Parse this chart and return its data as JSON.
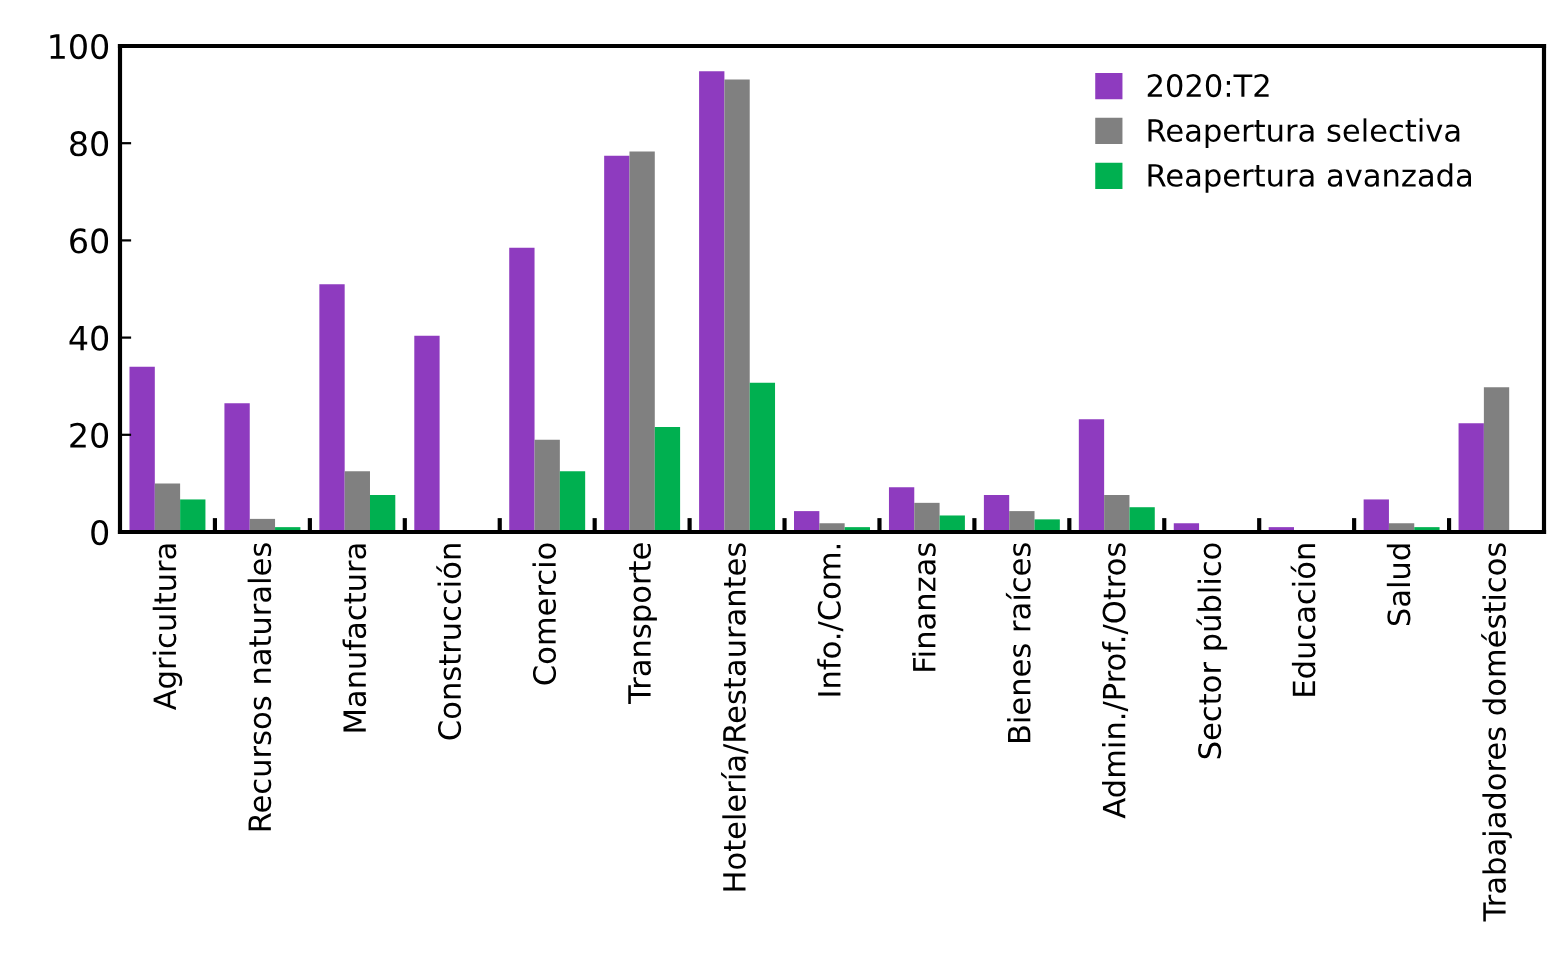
{
  "chart_data": {
    "type": "bar",
    "categories": [
      "Agricultura",
      "Recursos naturales",
      "Manufactura",
      "Construcción",
      "Comercio",
      "Transporte",
      "Hotelería/Restaurantes",
      "Info./Com.",
      "Finanzas",
      "Bienes raíces",
      "Admin./Prof./Otros",
      "Sector público",
      "Educación",
      "Salud",
      "Trabajadores domésticos"
    ],
    "series": [
      {
        "name": "2020:T2",
        "color": "#8e3bbf",
        "values": [
          34,
          26.5,
          51,
          40.4,
          58.5,
          77.4,
          94.8,
          4.3,
          9.2,
          7.6,
          23.2,
          1.8,
          1,
          6.7,
          22.4
        ]
      },
      {
        "name": "Reapertura selectiva",
        "color": "#808080",
        "values": [
          10,
          2.7,
          12.5,
          0,
          19,
          78.3,
          93.1,
          1.8,
          6,
          4.3,
          7.6,
          0,
          0,
          1.8,
          29.8
        ]
      },
      {
        "name": "Reapertura avanzada",
        "color": "#00b050",
        "values": [
          6.7,
          1,
          7.6,
          0,
          12.5,
          21.6,
          30.7,
          1,
          3.4,
          2.6,
          5.1,
          0,
          0,
          1,
          0
        ]
      }
    ],
    "ylim": [
      0,
      100
    ],
    "yticks": [
      0,
      20,
      40,
      60,
      80,
      100
    ],
    "grid": false,
    "legend": "top right"
  }
}
